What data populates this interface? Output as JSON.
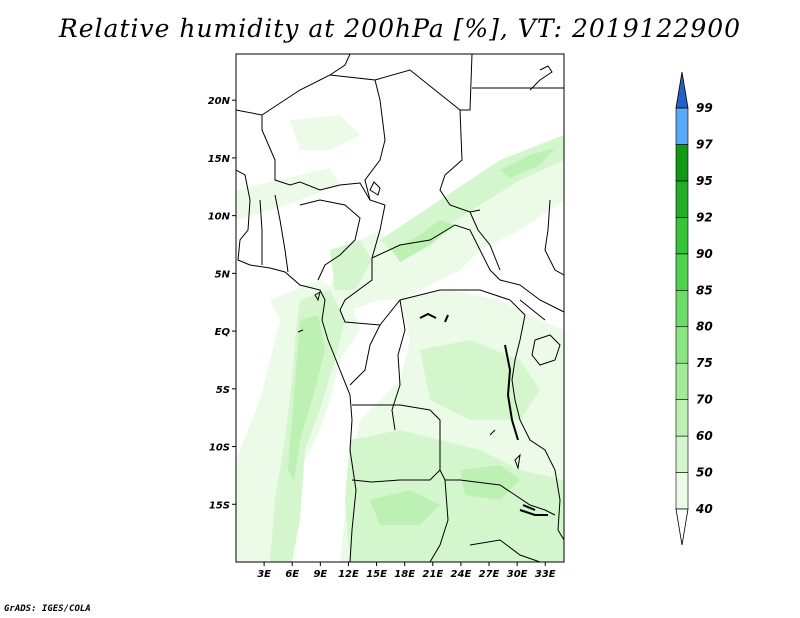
{
  "title": "Relative humidity at 200hPa [%], VT: 2019122900",
  "credit": "GrADS: IGES/COLA",
  "map": {
    "lat_range": [
      -20,
      24
    ],
    "lon_range": [
      0,
      35
    ],
    "lat_ticks": [
      {
        "value": 20,
        "label": "20N"
      },
      {
        "value": 15,
        "label": "15N"
      },
      {
        "value": 10,
        "label": "10N"
      },
      {
        "value": 5,
        "label": "5N"
      },
      {
        "value": 0,
        "label": "EQ"
      },
      {
        "value": -5,
        "label": "5S"
      },
      {
        "value": -10,
        "label": "10S"
      },
      {
        "value": -15,
        "label": "15S"
      }
    ],
    "lon_ticks": [
      {
        "value": 3,
        "label": "3E"
      },
      {
        "value": 6,
        "label": "6E"
      },
      {
        "value": 9,
        "label": "9E"
      },
      {
        "value": 12,
        "label": "12E"
      },
      {
        "value": 15,
        "label": "15E"
      },
      {
        "value": 18,
        "label": "18E"
      },
      {
        "value": 21,
        "label": "21E"
      },
      {
        "value": 24,
        "label": "24E"
      },
      {
        "value": 27,
        "label": "27E"
      },
      {
        "value": 30,
        "label": "30E"
      },
      {
        "value": 33,
        "label": "33E"
      }
    ]
  },
  "colorbar": {
    "levels": [
      "40",
      "50",
      "60",
      "70",
      "75",
      "80",
      "85",
      "90",
      "92",
      "95",
      "97",
      "99"
    ],
    "colors": [
      "#ebfbe7",
      "#d3f6cc",
      "#bcf1b3",
      "#a4eb99",
      "#8ce483",
      "#6edc68",
      "#51d24f",
      "#37c33a",
      "#22ae27",
      "#139816",
      "#5aaaf5",
      "#3f8eed",
      "#2b70da"
    ],
    "below_color": "#ffffff",
    "above_color": "#2261c8"
  },
  "humidity_fill_colors": {
    "c40": "#ebfbe7",
    "c50": "#d3f6cc",
    "c60": "#bcf1b3"
  },
  "line_color": "#000000"
}
